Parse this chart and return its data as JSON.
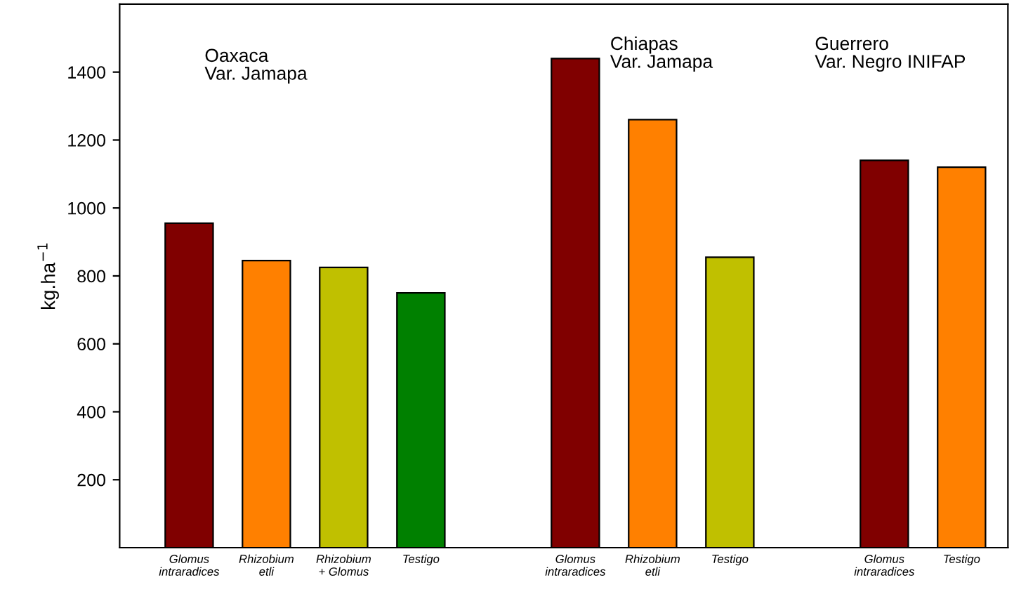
{
  "chart_data": {
    "type": "bar",
    "categories": [
      "Glomus\nintraradices",
      "Rhizobium\netli",
      "Rhizobium\n+ Glomus",
      "Testigo",
      null,
      "Glomus\nintraradices",
      "Rhizobium\netli",
      "Testigo",
      null,
      "Glomus\nintraradices",
      "Testigo"
    ],
    "values": [
      955,
      845,
      825,
      750,
      null,
      1440,
      1260,
      855,
      null,
      1140,
      1120
    ],
    "colors": [
      "#800000",
      "#ff8000",
      "#c0c000",
      "#008000",
      null,
      "#800000",
      "#ff8000",
      "#c0c000",
      null,
      "#800000",
      "#ff8000"
    ],
    "ylabel": "kg.ha$^{−1}$",
    "ylim": [
      0,
      1600
    ],
    "yticks": [
      200,
      400,
      600,
      800,
      1000,
      1200,
      1400
    ],
    "annotations": [
      "Oaxaca\nVar. Jamapa",
      "Chiapas\nVar. Jamapa",
      "Guerrero\nVar. Negro INIFAP"
    ],
    "grid": false,
    "legend": false
  }
}
